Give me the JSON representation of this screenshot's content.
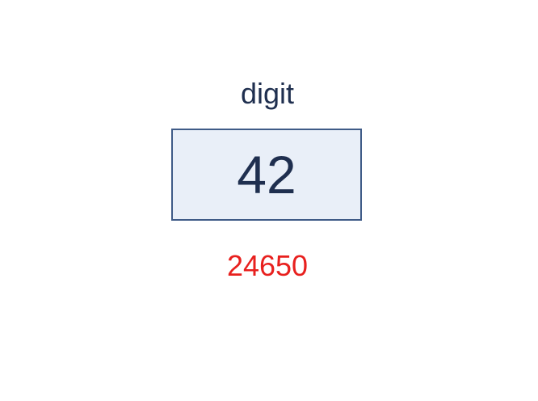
{
  "variable": {
    "name": "digit",
    "value": "42",
    "address": "24650"
  },
  "colors": {
    "text": "#1f2f4f",
    "box_fill": "#e9eff8",
    "box_border": "#3f5b87",
    "address": "#e8201e"
  }
}
